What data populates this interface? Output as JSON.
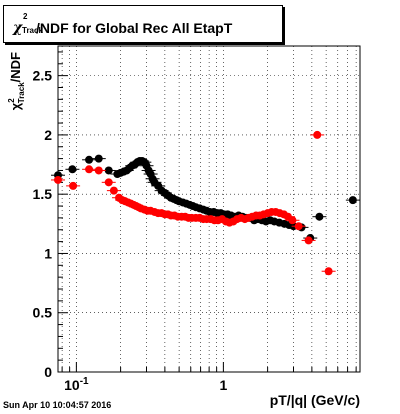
{
  "chart_data": {
    "type": "scatter",
    "title": "χ²Track/NDF for Global Rec All EtapT",
    "title_symbol": "χ",
    "title_sup": "2",
    "title_sub": "Track",
    "title_rest": "/NDF for Global Rec All EtapT",
    "xlabel": "pT/|q| (GeV/c)",
    "ylabel": "χ²Track/NDF",
    "x_scale": "log",
    "xlim": [
      0.075,
      8.5
    ],
    "ylim": [
      0,
      2.75
    ],
    "grid": true,
    "x_tick_labels": [
      {
        "value": 0.1,
        "label": "10",
        "sup": "-1"
      },
      {
        "value": 1,
        "label": "1"
      }
    ],
    "y_ticks": [
      0,
      0.5,
      1,
      1.5,
      2,
      2.5
    ],
    "y_tick_labels": [
      "0",
      "0.5",
      "1",
      "1.5",
      "2",
      "2.5"
    ],
    "series": [
      {
        "color": "#000000",
        "points": [
          {
            "x": 0.075,
            "y": 1.66
          },
          {
            "x": 0.094,
            "y": 1.71
          },
          {
            "x": 0.122,
            "y": 1.79
          },
          {
            "x": 0.142,
            "y": 1.8
          },
          {
            "x": 0.166,
            "y": 1.7
          },
          {
            "x": 0.19,
            "y": 1.67
          },
          {
            "x": 0.2,
            "y": 1.68
          },
          {
            "x": 0.21,
            "y": 1.69
          },
          {
            "x": 0.22,
            "y": 1.7
          },
          {
            "x": 0.23,
            "y": 1.72
          },
          {
            "x": 0.24,
            "y": 1.74
          },
          {
            "x": 0.25,
            "y": 1.75
          },
          {
            "x": 0.26,
            "y": 1.77
          },
          {
            "x": 0.27,
            "y": 1.78
          },
          {
            "x": 0.28,
            "y": 1.78
          },
          {
            "x": 0.29,
            "y": 1.77
          },
          {
            "x": 0.3,
            "y": 1.74
          },
          {
            "x": 0.31,
            "y": 1.7
          },
          {
            "x": 0.32,
            "y": 1.67
          },
          {
            "x": 0.33,
            "y": 1.63
          },
          {
            "x": 0.34,
            "y": 1.6
          },
          {
            "x": 0.36,
            "y": 1.57
          },
          {
            "x": 0.38,
            "y": 1.53
          },
          {
            "x": 0.4,
            "y": 1.51
          },
          {
            "x": 0.42,
            "y": 1.49
          },
          {
            "x": 0.44,
            "y": 1.47
          },
          {
            "x": 0.46,
            "y": 1.46
          },
          {
            "x": 0.48,
            "y": 1.45
          },
          {
            "x": 0.5,
            "y": 1.44
          },
          {
            "x": 0.53,
            "y": 1.43
          },
          {
            "x": 0.56,
            "y": 1.42
          },
          {
            "x": 0.59,
            "y": 1.41
          },
          {
            "x": 0.62,
            "y": 1.4
          },
          {
            "x": 0.65,
            "y": 1.39
          },
          {
            "x": 0.69,
            "y": 1.38
          },
          {
            "x": 0.73,
            "y": 1.37
          },
          {
            "x": 0.77,
            "y": 1.36
          },
          {
            "x": 0.81,
            "y": 1.35
          },
          {
            "x": 0.86,
            "y": 1.35
          },
          {
            "x": 0.91,
            "y": 1.34
          },
          {
            "x": 0.96,
            "y": 1.34
          },
          {
            "x": 1.01,
            "y": 1.33
          },
          {
            "x": 1.07,
            "y": 1.33
          },
          {
            "x": 1.13,
            "y": 1.32
          },
          {
            "x": 1.2,
            "y": 1.31
          },
          {
            "x": 1.27,
            "y": 1.32
          },
          {
            "x": 1.35,
            "y": 1.31
          },
          {
            "x": 1.43,
            "y": 1.3
          },
          {
            "x": 1.52,
            "y": 1.3
          },
          {
            "x": 1.62,
            "y": 1.28
          },
          {
            "x": 1.72,
            "y": 1.29
          },
          {
            "x": 1.83,
            "y": 1.28
          },
          {
            "x": 1.95,
            "y": 1.27
          },
          {
            "x": 2.08,
            "y": 1.28
          },
          {
            "x": 2.22,
            "y": 1.27
          },
          {
            "x": 2.4,
            "y": 1.26
          },
          {
            "x": 2.6,
            "y": 1.25
          },
          {
            "x": 2.8,
            "y": 1.24
          },
          {
            "x": 3.0,
            "y": 1.23
          },
          {
            "x": 3.4,
            "y": 1.22
          },
          {
            "x": 3.9,
            "y": 1.13
          },
          {
            "x": 4.5,
            "y": 1.31
          },
          {
            "x": 7.6,
            "y": 1.45
          }
        ]
      },
      {
        "color": "#ff0000",
        "points": [
          {
            "x": 0.075,
            "y": 1.62
          },
          {
            "x": 0.095,
            "y": 1.57
          },
          {
            "x": 0.122,
            "y": 1.71
          },
          {
            "x": 0.142,
            "y": 1.7
          },
          {
            "x": 0.166,
            "y": 1.6
          },
          {
            "x": 0.18,
            "y": 1.53
          },
          {
            "x": 0.195,
            "y": 1.47
          },
          {
            "x": 0.205,
            "y": 1.45
          },
          {
            "x": 0.215,
            "y": 1.44
          },
          {
            "x": 0.225,
            "y": 1.43
          },
          {
            "x": 0.235,
            "y": 1.42
          },
          {
            "x": 0.245,
            "y": 1.41
          },
          {
            "x": 0.255,
            "y": 1.4
          },
          {
            "x": 0.265,
            "y": 1.39
          },
          {
            "x": 0.275,
            "y": 1.38
          },
          {
            "x": 0.29,
            "y": 1.37
          },
          {
            "x": 0.305,
            "y": 1.36
          },
          {
            "x": 0.32,
            "y": 1.36
          },
          {
            "x": 0.34,
            "y": 1.35
          },
          {
            "x": 0.36,
            "y": 1.34
          },
          {
            "x": 0.38,
            "y": 1.34
          },
          {
            "x": 0.4,
            "y": 1.33
          },
          {
            "x": 0.42,
            "y": 1.33
          },
          {
            "x": 0.44,
            "y": 1.32
          },
          {
            "x": 0.465,
            "y": 1.32
          },
          {
            "x": 0.49,
            "y": 1.31
          },
          {
            "x": 0.52,
            "y": 1.31
          },
          {
            "x": 0.55,
            "y": 1.31
          },
          {
            "x": 0.58,
            "y": 1.3
          },
          {
            "x": 0.61,
            "y": 1.3
          },
          {
            "x": 0.65,
            "y": 1.3
          },
          {
            "x": 0.69,
            "y": 1.3
          },
          {
            "x": 0.73,
            "y": 1.29
          },
          {
            "x": 0.77,
            "y": 1.29
          },
          {
            "x": 0.82,
            "y": 1.29
          },
          {
            "x": 0.87,
            "y": 1.28
          },
          {
            "x": 0.92,
            "y": 1.28
          },
          {
            "x": 0.98,
            "y": 1.29
          },
          {
            "x": 1.04,
            "y": 1.27
          },
          {
            "x": 1.1,
            "y": 1.26
          },
          {
            "x": 1.17,
            "y": 1.27
          },
          {
            "x": 1.24,
            "y": 1.29
          },
          {
            "x": 1.32,
            "y": 1.3
          },
          {
            "x": 1.4,
            "y": 1.29
          },
          {
            "x": 1.48,
            "y": 1.3
          },
          {
            "x": 1.57,
            "y": 1.31
          },
          {
            "x": 1.67,
            "y": 1.32
          },
          {
            "x": 1.77,
            "y": 1.32
          },
          {
            "x": 1.88,
            "y": 1.33
          },
          {
            "x": 2.0,
            "y": 1.34
          },
          {
            "x": 2.13,
            "y": 1.35
          },
          {
            "x": 2.27,
            "y": 1.35
          },
          {
            "x": 2.42,
            "y": 1.34
          },
          {
            "x": 2.58,
            "y": 1.33
          },
          {
            "x": 2.75,
            "y": 1.31
          },
          {
            "x": 2.95,
            "y": 1.28
          },
          {
            "x": 3.25,
            "y": 1.23
          },
          {
            "x": 3.8,
            "y": 1.11
          },
          {
            "x": 4.35,
            "y": 2.0
          },
          {
            "x": 5.2,
            "y": 0.85
          }
        ]
      }
    ]
  },
  "footer": {
    "timestamp": "Sun Apr 10 10:04:57 2016"
  }
}
